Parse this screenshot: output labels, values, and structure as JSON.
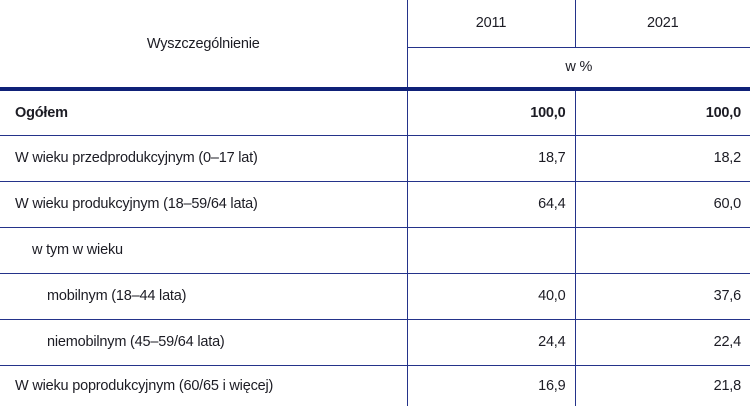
{
  "table": {
    "header": {
      "spec_label": "Wyszczególnienie",
      "col_2011": "2011",
      "col_2021": "2021",
      "unit_label": "w %"
    },
    "rows": [
      {
        "label": "Ogółem",
        "y2011": "100,0",
        "y2021": "100,0"
      },
      {
        "label": "W wieku przedprodukcyjnym (0–17 lat)",
        "y2011": "18,7",
        "y2021": "18,2"
      },
      {
        "label": "W wieku produkcyjnym (18–59/64 lata)",
        "y2011": "64,4",
        "y2021": "60,0"
      },
      {
        "label": "w tym w wieku",
        "y2011": "",
        "y2021": ""
      },
      {
        "label": "mobilnym (18–44 lata)",
        "y2011": "40,0",
        "y2021": "37,6"
      },
      {
        "label": "niemobilnym (45–59/64 lata)",
        "y2011": "24,4",
        "y2021": "22,4"
      },
      {
        "label": "W wieku poprodukcyjnym (60/65 i więcej)",
        "y2011": "16,9",
        "y2021": "21,8"
      }
    ],
    "colors": {
      "rule_thick": "#0f2178",
      "rule_thin": "#24338a",
      "text": "#1c1c24",
      "background": "#ffffff"
    }
  },
  "chart_data": {
    "type": "table",
    "title": "",
    "columns": [
      "Wyszczególnienie",
      "2011",
      "2021"
    ],
    "unit": "w %",
    "rows": [
      [
        "Ogółem",
        100.0,
        100.0
      ],
      [
        "W wieku przedprodukcyjnym (0–17 lat)",
        18.7,
        18.2
      ],
      [
        "W wieku produkcyjnym (18–59/64 lata)",
        64.4,
        60.0
      ],
      [
        "w tym w wieku",
        null,
        null
      ],
      [
        "mobilnym (18–44 lata)",
        40.0,
        37.6
      ],
      [
        "niemobilnym (45–59/64 lata)",
        24.4,
        22.4
      ],
      [
        "W wieku poprodukcyjnym (60/65 i więcej)",
        16.9,
        21.8
      ]
    ]
  }
}
